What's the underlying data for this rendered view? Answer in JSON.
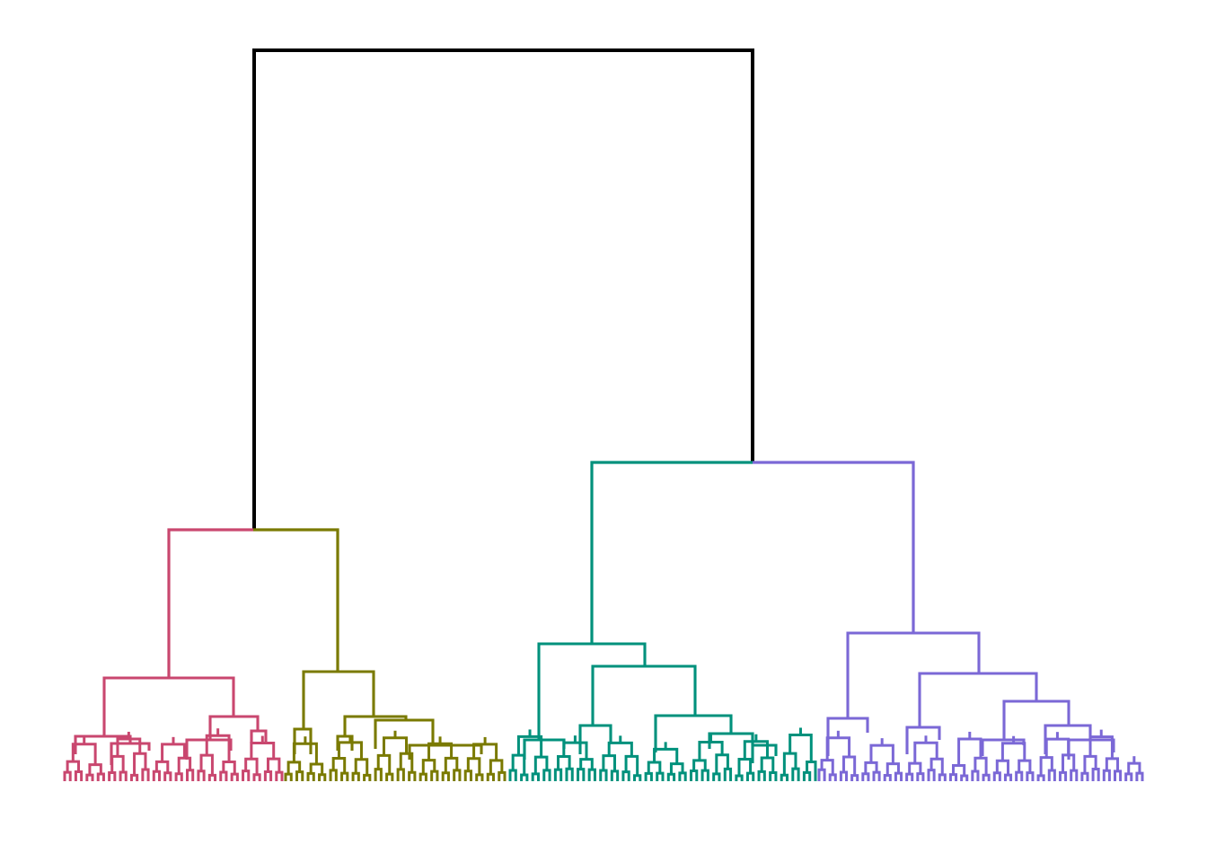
{
  "diagram": {
    "type": "dendrogram",
    "clusters": [
      {
        "color": "#C9476F",
        "leaf_count": 40
      },
      {
        "color": "#7A7A00",
        "leaf_count": 40
      },
      {
        "color": "#00917C",
        "leaf_count": 55
      },
      {
        "color": "#7B68D6",
        "leaf_count": 60
      }
    ],
    "root_color": "#000000",
    "labels_shown": false,
    "axes_shown": false
  }
}
